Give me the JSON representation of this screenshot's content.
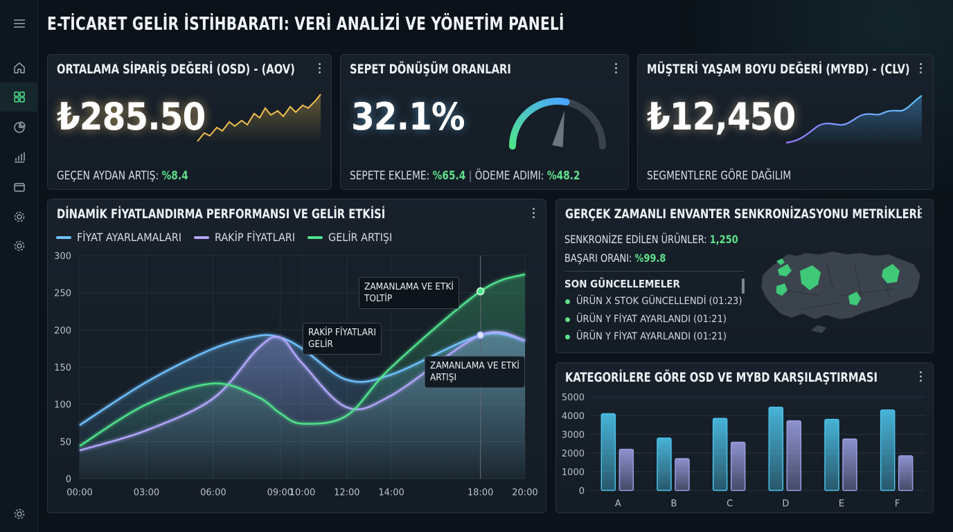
{
  "page_title": "E-TİCARET GELİR İSTİHBARATI: VERİ ANALİZİ VE YÖNETİM PANELİ",
  "sidebar": {
    "items": [
      {
        "icon": "menu-icon"
      },
      {
        "icon": "home-icon"
      },
      {
        "icon": "grid-icon",
        "active": true
      },
      {
        "icon": "pie-chart-icon"
      },
      {
        "icon": "bar-chart-icon"
      },
      {
        "icon": "wallet-icon"
      },
      {
        "icon": "gear-icon"
      },
      {
        "icon": "gear-icon"
      },
      {
        "icon": "gear-icon"
      }
    ]
  },
  "aov_card": {
    "title": "ORTALAMA SİPARİŞ DEĞERİ (OSD) - (AOV)",
    "value": "₺285.50",
    "growth_label": "GEÇEN AYDAN ARTIŞ:",
    "growth_value": "%8.4",
    "accent": "#f2c14e"
  },
  "conversion_card": {
    "title": "SEPET DÖNÜŞÜM ORANLARI",
    "value": "32.1%",
    "gauge_level": 0.321,
    "add_to_cart_label": "SEPETE EKLEME:",
    "add_to_cart_value": "%65.4",
    "separator": "|",
    "checkout_label": "ÖDEME ADIMI:",
    "checkout_value": "%48.2"
  },
  "clv_card": {
    "title": "MÜŞTERİ YAŞAM BOYU DEĞERİ (MYBD) - (CLV)",
    "value": "₺12,450",
    "footer": "SEGMENTLERE GÖRE DAĞILIM",
    "accent": "#6fb8ff"
  },
  "pricing_card": {
    "title": "DİNAMİK FİYATLANDIRMA PERFORMANSI VE GELİR ETKİSİ",
    "tooltips": [
      {
        "line1": "ZAMANLAMA VE ETKİ",
        "line2": "TOLTİP"
      },
      {
        "line1": "RAKİP FİYATLARI",
        "line2": "GELİR"
      },
      {
        "line1": "ZAMANLAMA VE ETKİ",
        "line2": "ARTIŞI"
      }
    ]
  },
  "inventory_card": {
    "title": "GERÇEK ZAMANLI ENVANTER SENKRONİZASYONU METRİKLERİ",
    "synced_label": "SENKRONİZE EDİLEN ÜRÜNLER:",
    "synced_value": "1,250",
    "success_label": "BAŞARI ORANI:",
    "success_value": "%99.8",
    "updates_title": "SON GÜNCELLEMELER",
    "updates": [
      "ÜRÜN X STOK GÜNCELLENDİ (01:23)",
      "ÜRÜN Y FİYAT AYARLANDI (01:21)",
      "ÜRÜN Y FİYAT AYARLANDI (01:21)"
    ]
  },
  "category_card": {
    "title": "KATEGORİLERE GÖRE OSD VE MYBD KARŞILAŞTIRMASI"
  },
  "chart_data": [
    {
      "type": "line",
      "title": "DİNAMİK FİYATLANDIRMA PERFORMANSI VE GELİR ETKİSİ",
      "x": [
        "00:00",
        "03:00",
        "06:00",
        "09:00",
        "10:00",
        "12:00",
        "14:00",
        "18:00",
        "20:00"
      ],
      "x_hours": [
        0,
        3,
        6,
        9,
        10,
        12,
        14,
        18,
        20
      ],
      "ylim": [
        0,
        300
      ],
      "yticks": [
        0,
        50,
        100,
        150,
        200,
        250,
        300
      ],
      "grid": true,
      "legend": "top-left",
      "series": [
        {
          "name": "FİYAT AYARLAMALARI",
          "color": "#6ec1ff",
          "points": [
            [
              0,
              72
            ],
            [
              3,
              130
            ],
            [
              6,
              175
            ],
            [
              8,
              192
            ],
            [
              9,
              190
            ],
            [
              10,
              175
            ],
            [
              12,
              133
            ],
            [
              14,
              140
            ],
            [
              18,
              193
            ],
            [
              20,
              186
            ]
          ]
        },
        {
          "name": "RAKİP FİYATLARI",
          "color": "#b4a6ff",
          "points": [
            [
              0,
              38
            ],
            [
              3,
              65
            ],
            [
              6,
              108
            ],
            [
              8,
              175
            ],
            [
              9,
              190
            ],
            [
              10,
              155
            ],
            [
              12,
              96
            ],
            [
              14,
              112
            ],
            [
              18,
              193
            ],
            [
              20,
              186
            ]
          ]
        },
        {
          "name": "GELİR ARTIŞI",
          "color": "#4fe38c",
          "points": [
            [
              0,
              44
            ],
            [
              3,
              100
            ],
            [
              6,
              128
            ],
            [
              8,
              110
            ],
            [
              9,
              88
            ],
            [
              10,
              74
            ],
            [
              12,
              85
            ],
            [
              14,
              150
            ],
            [
              18,
              252
            ],
            [
              20,
              275
            ]
          ]
        }
      ]
    },
    {
      "type": "bar",
      "title": "KATEGORİLERE GÖRE OSD VE MYBD KARŞILAŞTIRMASI",
      "categories": [
        "A",
        "B",
        "C",
        "D",
        "E",
        "F"
      ],
      "ylim": [
        0,
        5000
      ],
      "yticks": [
        0,
        1000,
        2000,
        3000,
        4000,
        5000
      ],
      "grid": true,
      "series": [
        {
          "color": "#4cc3ea",
          "values": [
            4100,
            2800,
            3850,
            4450,
            3800,
            4300
          ]
        },
        {
          "color": "#9a9ee0",
          "values": [
            2200,
            1700,
            2580,
            3720,
            2750,
            1850
          ]
        }
      ]
    }
  ]
}
